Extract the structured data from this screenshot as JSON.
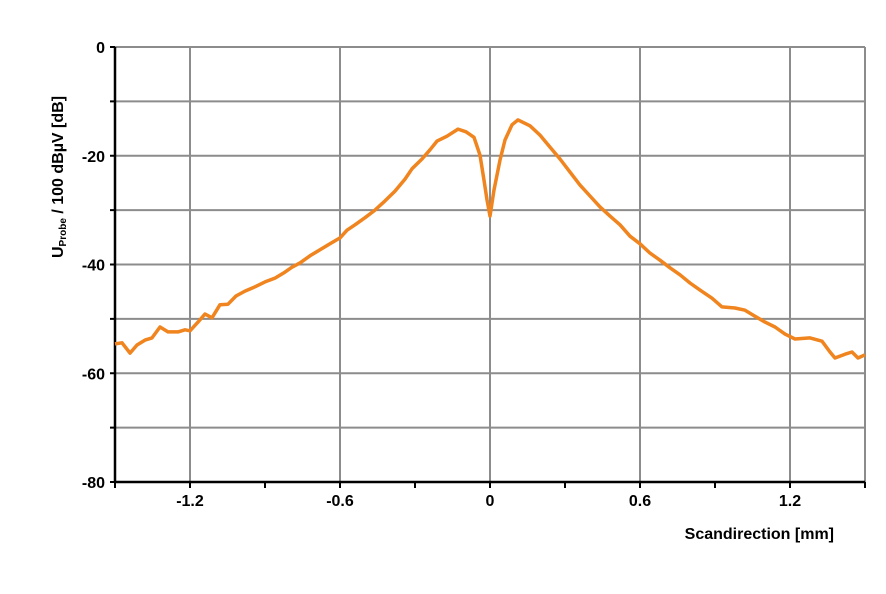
{
  "chart_data": {
    "type": "line",
    "title": "",
    "xlabel": "Scandirection [mm]",
    "ylabel": {
      "main": "U",
      "subscript": "Probe",
      "rest": " / 100 dBµV [dB]"
    },
    "xlim": [
      -1.5,
      1.5
    ],
    "ylim": [
      -80,
      0
    ],
    "xticks": [
      -1.2,
      -0.6,
      0,
      0.6,
      1.2
    ],
    "xtick_labels": [
      "-1.2",
      "-0.6",
      "0",
      "0.6",
      "1.2"
    ],
    "yticks": [
      0,
      -20,
      -40,
      -60,
      -80
    ],
    "ytick_labels": [
      "0",
      "-20",
      "-40",
      "-60",
      "-80"
    ],
    "grid": true,
    "line_color": "#F0841E",
    "series": [
      {
        "x": [
          -1.5,
          -1.472,
          -1.44,
          -1.412,
          -1.38,
          -1.352,
          -1.32,
          -1.288,
          -1.248,
          -1.22,
          -1.2,
          -1.168,
          -1.14,
          -1.112,
          -1.08,
          -1.048,
          -1.016,
          -0.98,
          -0.94,
          -0.9,
          -0.86,
          -0.82,
          -0.792,
          -0.76,
          -0.72,
          -0.68,
          -0.64,
          -0.6,
          -0.572,
          -0.54,
          -0.5,
          -0.46,
          -0.42,
          -0.38,
          -0.34,
          -0.312,
          -0.272,
          -0.24,
          -0.212,
          -0.172,
          -0.128,
          -0.096,
          -0.064,
          -0.04,
          -0.024,
          -0.012,
          0,
          0.016,
          0.04,
          0.06,
          0.088,
          0.112,
          0.16,
          0.2,
          0.24,
          0.28,
          0.32,
          0.36,
          0.4,
          0.44,
          0.48,
          0.52,
          0.56,
          0.6,
          0.64,
          0.68,
          0.72,
          0.76,
          0.8,
          0.84,
          0.888,
          0.928,
          0.98,
          1.02,
          1.06,
          1.1,
          1.14,
          1.18,
          1.22,
          1.28,
          1.328,
          1.36,
          1.38,
          1.42,
          1.448,
          1.472,
          1.5
        ],
        "y": [
          -54.6,
          -54.4,
          -56.3,
          -54.8,
          -53.9,
          -53.5,
          -51.5,
          -52.4,
          -52.4,
          -52.0,
          -52.2,
          -50.6,
          -49.1,
          -49.8,
          -47.4,
          -47.3,
          -45.8,
          -44.9,
          -44.1,
          -43.2,
          -42.5,
          -41.4,
          -40.5,
          -39.7,
          -38.4,
          -37.3,
          -36.2,
          -35.1,
          -33.7,
          -32.7,
          -31.4,
          -30.0,
          -28.3,
          -26.5,
          -24.3,
          -22.4,
          -20.6,
          -18.9,
          -17.3,
          -16.4,
          -15.1,
          -15.6,
          -16.6,
          -19.9,
          -24.5,
          -28.1,
          -31.1,
          -26.3,
          -20.8,
          -17.1,
          -14.3,
          -13.4,
          -14.5,
          -16.2,
          -18.4,
          -20.6,
          -23.0,
          -25.4,
          -27.4,
          -29.4,
          -31.1,
          -32.7,
          -34.8,
          -36.2,
          -37.9,
          -39.2,
          -40.6,
          -41.9,
          -43.4,
          -44.7,
          -46.2,
          -47.8,
          -48.0,
          -48.4,
          -49.5,
          -50.6,
          -51.5,
          -52.8,
          -53.7,
          -53.5,
          -54.1,
          -56.1,
          -57.2,
          -56.5,
          -56.1,
          -57.2,
          -56.6
        ]
      }
    ]
  }
}
